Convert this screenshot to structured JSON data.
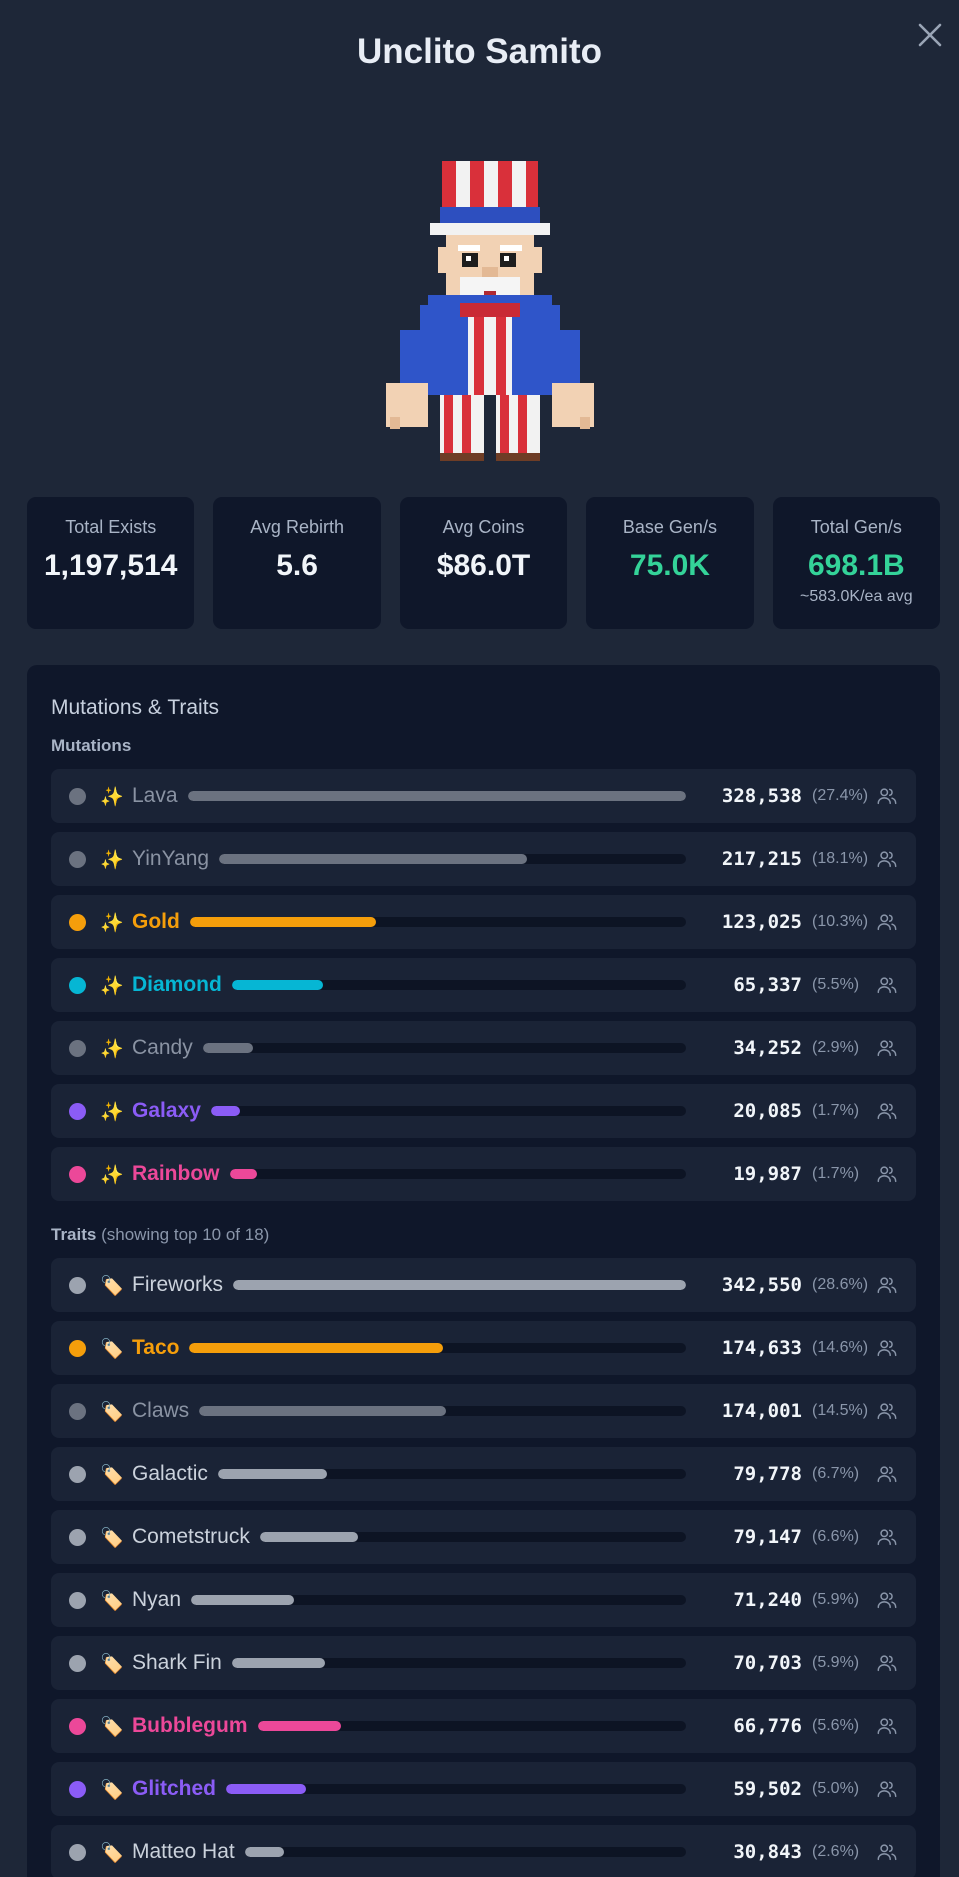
{
  "title": "Unclito Samito",
  "stats": [
    {
      "label": "Total Exists",
      "value": "1,197,514",
      "sub": ""
    },
    {
      "label": "Avg Rebirth",
      "value": "5.6",
      "sub": ""
    },
    {
      "label": "Avg Coins",
      "value": "$86.0T",
      "sub": ""
    },
    {
      "label": "Base Gen/s",
      "value": "75.0K",
      "sub": ""
    },
    {
      "label": "Total Gen/s",
      "value": "698.1B",
      "sub": "~583.0K/ea avg"
    }
  ],
  "panel": {
    "title": "Mutations & Traits",
    "mutations_label": "Mutations",
    "traits_label": "Traits",
    "traits_note": "(showing top 10 of 18)"
  },
  "mutations": [
    {
      "icon": "✨",
      "name": "Lava",
      "count": "328,538",
      "pct": "(27.4%)",
      "fill": 1.0,
      "color": "#6b7280",
      "text_color": "#8a93a3",
      "bold": false
    },
    {
      "icon": "✨",
      "name": "YinYang",
      "count": "217,215",
      "pct": "(18.1%)",
      "fill": 0.66,
      "color": "#6b7280",
      "text_color": "#8a93a3",
      "bold": false
    },
    {
      "icon": "✨",
      "name": "Gold",
      "count": "123,025",
      "pct": "(10.3%)",
      "fill": 0.375,
      "color": "#f59e0b",
      "text_color": "#f59e0b",
      "bold": true
    },
    {
      "icon": "✨",
      "name": "Diamond",
      "count": "65,337",
      "pct": "(5.5%)",
      "fill": 0.2,
      "color": "#06b6d4",
      "text_color": "#06b6d4",
      "bold": true
    },
    {
      "icon": "✨",
      "name": "Candy",
      "count": "34,252",
      "pct": "(2.9%)",
      "fill": 0.104,
      "color": "#6b7280",
      "text_color": "#8a93a3",
      "bold": false
    },
    {
      "icon": "✨",
      "name": "Galaxy",
      "count": "20,085",
      "pct": "(1.7%)",
      "fill": 0.061,
      "color": "#8b5cf6",
      "text_color": "#8b5cf6",
      "bold": true
    },
    {
      "icon": "✨",
      "name": "Rainbow",
      "count": "19,987",
      "pct": "(1.7%)",
      "fill": 0.061,
      "color": "#ec4899",
      "text_color": "#ec4899",
      "bold": true
    }
  ],
  "traits": [
    {
      "icon": "🏷️",
      "name": "Fireworks",
      "count": "342,550",
      "pct": "(28.6%)",
      "fill": 1.0,
      "color": "#9ca3af",
      "text_color": "#cbd2dc",
      "bold": false
    },
    {
      "icon": "🏷️",
      "name": "Taco",
      "count": "174,633",
      "pct": "(14.6%)",
      "fill": 0.51,
      "color": "#f59e0b",
      "text_color": "#f59e0b",
      "bold": true
    },
    {
      "icon": "🏷️",
      "name": "Claws",
      "count": "174,001",
      "pct": "(14.5%)",
      "fill": 0.508,
      "color": "#6b7280",
      "text_color": "#8a93a3",
      "bold": false
    },
    {
      "icon": "🏷️",
      "name": "Galactic",
      "count": "79,778",
      "pct": "(6.7%)",
      "fill": 0.233,
      "color": "#9ca3af",
      "text_color": "#cbd2dc",
      "bold": false
    },
    {
      "icon": "🏷️",
      "name": "Cometstruck",
      "count": "79,147",
      "pct": "(6.6%)",
      "fill": 0.231,
      "color": "#9ca3af",
      "text_color": "#cbd2dc",
      "bold": false
    },
    {
      "icon": "🏷️",
      "name": "Nyan",
      "count": "71,240",
      "pct": "(5.9%)",
      "fill": 0.208,
      "color": "#9ca3af",
      "text_color": "#cbd2dc",
      "bold": false
    },
    {
      "icon": "🏷️",
      "name": "Shark Fin",
      "count": "70,703",
      "pct": "(5.9%)",
      "fill": 0.206,
      "color": "#9ca3af",
      "text_color": "#cbd2dc",
      "bold": false
    },
    {
      "icon": "🏷️",
      "name": "Bubblegum",
      "count": "66,776",
      "pct": "(5.6%)",
      "fill": 0.195,
      "color": "#ec4899",
      "text_color": "#ec4899",
      "bold": true
    },
    {
      "icon": "🏷️",
      "name": "Glitched",
      "count": "59,502",
      "pct": "(5.0%)",
      "fill": 0.174,
      "color": "#8b5cf6",
      "text_color": "#8b5cf6",
      "bold": true
    },
    {
      "icon": "🏷️",
      "name": "Matteo Hat",
      "count": "30,843",
      "pct": "(2.6%)",
      "fill": 0.09,
      "color": "#9ca3af",
      "text_color": "#cbd2dc",
      "bold": false
    }
  ]
}
